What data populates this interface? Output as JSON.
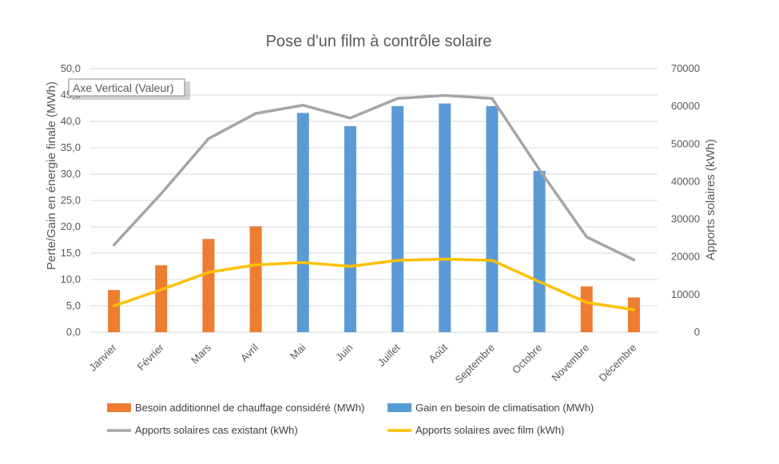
{
  "chart_data": {
    "type": "bar",
    "title": "Pose d'un film à contrôle solaire",
    "categories": [
      "Janvier",
      "Février",
      "Mars",
      "Avril",
      "Mai",
      "Juin",
      "Juillet",
      "Août",
      "Septembre",
      "Octobre",
      "Novembre",
      "Décembre"
    ],
    "y_left": {
      "label": "Perte/Gain en énergie finale (MWh)",
      "range": [
        0,
        50
      ],
      "ticks": [
        "0,0",
        "5,0",
        "10,0",
        "15,0",
        "20,0",
        "25,0",
        "30,0",
        "35,0",
        "40,0",
        "45,0",
        "50,0"
      ]
    },
    "y_right": {
      "label": "Apports solaires (kWh)",
      "range": [
        0,
        70000
      ],
      "ticks": [
        "0",
        "10000",
        "20000",
        "30000",
        "40000",
        "50000",
        "60000",
        "70000"
      ]
    },
    "grid": true,
    "legend_position": "bottom",
    "series": [
      {
        "name": "Besoin additionnel de chauffage considéré (MWh)",
        "kind": "bar",
        "axis": "left",
        "color": "#ED7D31",
        "values": [
          8.0,
          12.7,
          17.7,
          20.1,
          null,
          null,
          null,
          null,
          null,
          null,
          8.7,
          6.6
        ]
      },
      {
        "name": "Gain en besoin de climatisation (MWh)",
        "kind": "bar",
        "axis": "left",
        "color": "#5B9BD5",
        "values": [
          null,
          null,
          null,
          null,
          41.6,
          39.1,
          42.9,
          43.4,
          42.9,
          30.6,
          null,
          null
        ]
      },
      {
        "name": "Apports solaires cas existant (kWh)",
        "kind": "line",
        "axis": "right",
        "color": "#A5A5A5",
        "values": [
          23200,
          36800,
          51400,
          58100,
          60300,
          56900,
          62100,
          62900,
          62100,
          43200,
          25300,
          19200
        ]
      },
      {
        "name": "Apports solaires avec film (kWh)",
        "kind": "line",
        "axis": "right",
        "color": "#FFC000",
        "values": [
          7000,
          11300,
          15900,
          17900,
          18500,
          17500,
          19100,
          19400,
          19100,
          13400,
          7900,
          6000
        ]
      }
    ]
  },
  "tooltip": {
    "text": "Axe Vertical (Valeur)"
  }
}
